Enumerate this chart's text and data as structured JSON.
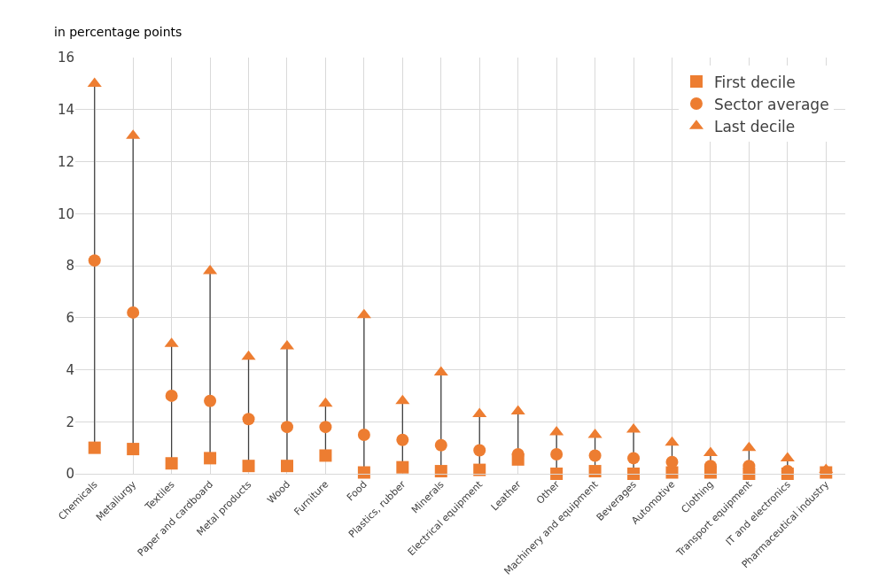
{
  "chart_data": {
    "type": "scatter",
    "ylabel": "in percentage points",
    "categories": [
      "Chemicals",
      "Metallurgy",
      "Textiles",
      "Paper and cardboard",
      "Metal products",
      "Wood",
      "Furniture",
      "Food",
      "Plastics, rubber",
      "Minerals",
      "Electrical equipment",
      "Leather",
      "Other",
      "Machinery and equipment",
      "Beverages",
      "Automotive",
      "Clothing",
      "Transport equipment",
      "IT and electronics",
      "Pharmaceutical industry"
    ],
    "series": [
      {
        "name": "First decile",
        "color": "#ed7d31",
        "marker": "square",
        "values": [
          1.0,
          0.95,
          0.4,
          0.6,
          0.3,
          0.3,
          0.7,
          0.05,
          0.25,
          0.1,
          0.15,
          0.55,
          0.0,
          0.1,
          0.0,
          0.05,
          0.05,
          0.0,
          0.0,
          0.05
        ]
      },
      {
        "name": "Sector average",
        "color": "#ed7d31",
        "marker": "circle",
        "values": [
          8.2,
          6.2,
          3.0,
          2.8,
          2.1,
          1.8,
          1.8,
          1.5,
          1.3,
          1.1,
          0.9,
          0.75,
          0.75,
          0.7,
          0.6,
          0.45,
          0.3,
          0.3,
          0.1,
          null
        ]
      },
      {
        "name": "Last decile",
        "color": "#ed7d31",
        "marker": "triangle",
        "values": [
          15.0,
          13.0,
          5.0,
          7.8,
          4.5,
          4.9,
          2.7,
          6.1,
          2.8,
          3.9,
          2.3,
          2.4,
          1.6,
          1.5,
          1.7,
          1.2,
          0.8,
          1.0,
          0.6,
          0.15
        ]
      }
    ],
    "ylim": [
      0,
      16
    ],
    "yticks": [
      0,
      2,
      4,
      6,
      8,
      10,
      12,
      14,
      16
    ],
    "grid": true,
    "legend": "top right"
  }
}
